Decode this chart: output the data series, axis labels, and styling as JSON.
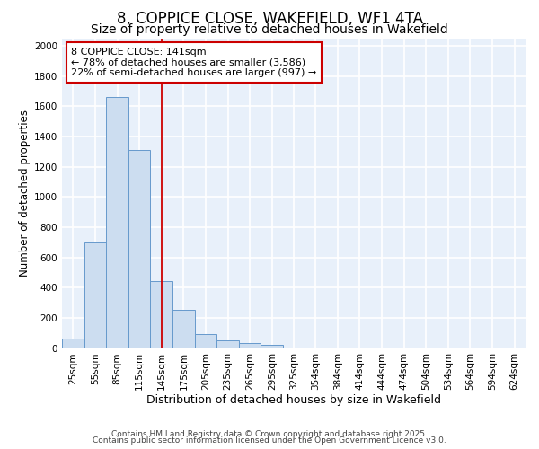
{
  "title": "8, COPPICE CLOSE, WAKEFIELD, WF1 4TA",
  "subtitle": "Size of property relative to detached houses in Wakefield",
  "xlabel": "Distribution of detached houses by size in Wakefield",
  "ylabel": "Number of detached properties",
  "bar_color": "#ccddf0",
  "bar_edge_color": "#6699cc",
  "background_color": "#e8f0fa",
  "grid_color": "#ffffff",
  "fig_background": "#ffffff",
  "categories": [
    "25sqm",
    "55sqm",
    "85sqm",
    "115sqm",
    "145sqm",
    "175sqm",
    "205sqm",
    "235sqm",
    "265sqm",
    "295sqm",
    "325sqm",
    "354sqm",
    "384sqm",
    "414sqm",
    "444sqm",
    "474sqm",
    "504sqm",
    "534sqm",
    "564sqm",
    "594sqm",
    "624sqm"
  ],
  "values": [
    60,
    700,
    1660,
    1310,
    440,
    255,
    90,
    50,
    30,
    20,
    5,
    5,
    3,
    2,
    2,
    2,
    1,
    1,
    1,
    1,
    1
  ],
  "bin_starts": [
    10,
    40,
    70,
    100,
    130,
    160,
    190,
    220,
    250,
    280,
    310,
    339,
    369,
    399,
    429,
    459,
    489,
    519,
    549,
    579,
    609
  ],
  "bin_width": 30,
  "ylim": [
    0,
    2050
  ],
  "yticks": [
    0,
    200,
    400,
    600,
    800,
    1000,
    1200,
    1400,
    1600,
    1800,
    2000
  ],
  "vline_x": 145,
  "vline_color": "#cc0000",
  "annotation_line1": "8 COPPICE CLOSE: 141sqm",
  "annotation_line2": "← 78% of detached houses are smaller (3,586)",
  "annotation_line3": "22% of semi-detached houses are larger (997) →",
  "annotation_box_color": "#ffffff",
  "annotation_box_edge_color": "#cc0000",
  "footer_line1": "Contains HM Land Registry data © Crown copyright and database right 2025.",
  "footer_line2": "Contains public sector information licensed under the Open Government Licence v3.0.",
  "title_fontsize": 12,
  "subtitle_fontsize": 10,
  "xlabel_fontsize": 9,
  "ylabel_fontsize": 8.5,
  "tick_fontsize": 7.5,
  "annotation_fontsize": 8,
  "footer_fontsize": 6.5
}
